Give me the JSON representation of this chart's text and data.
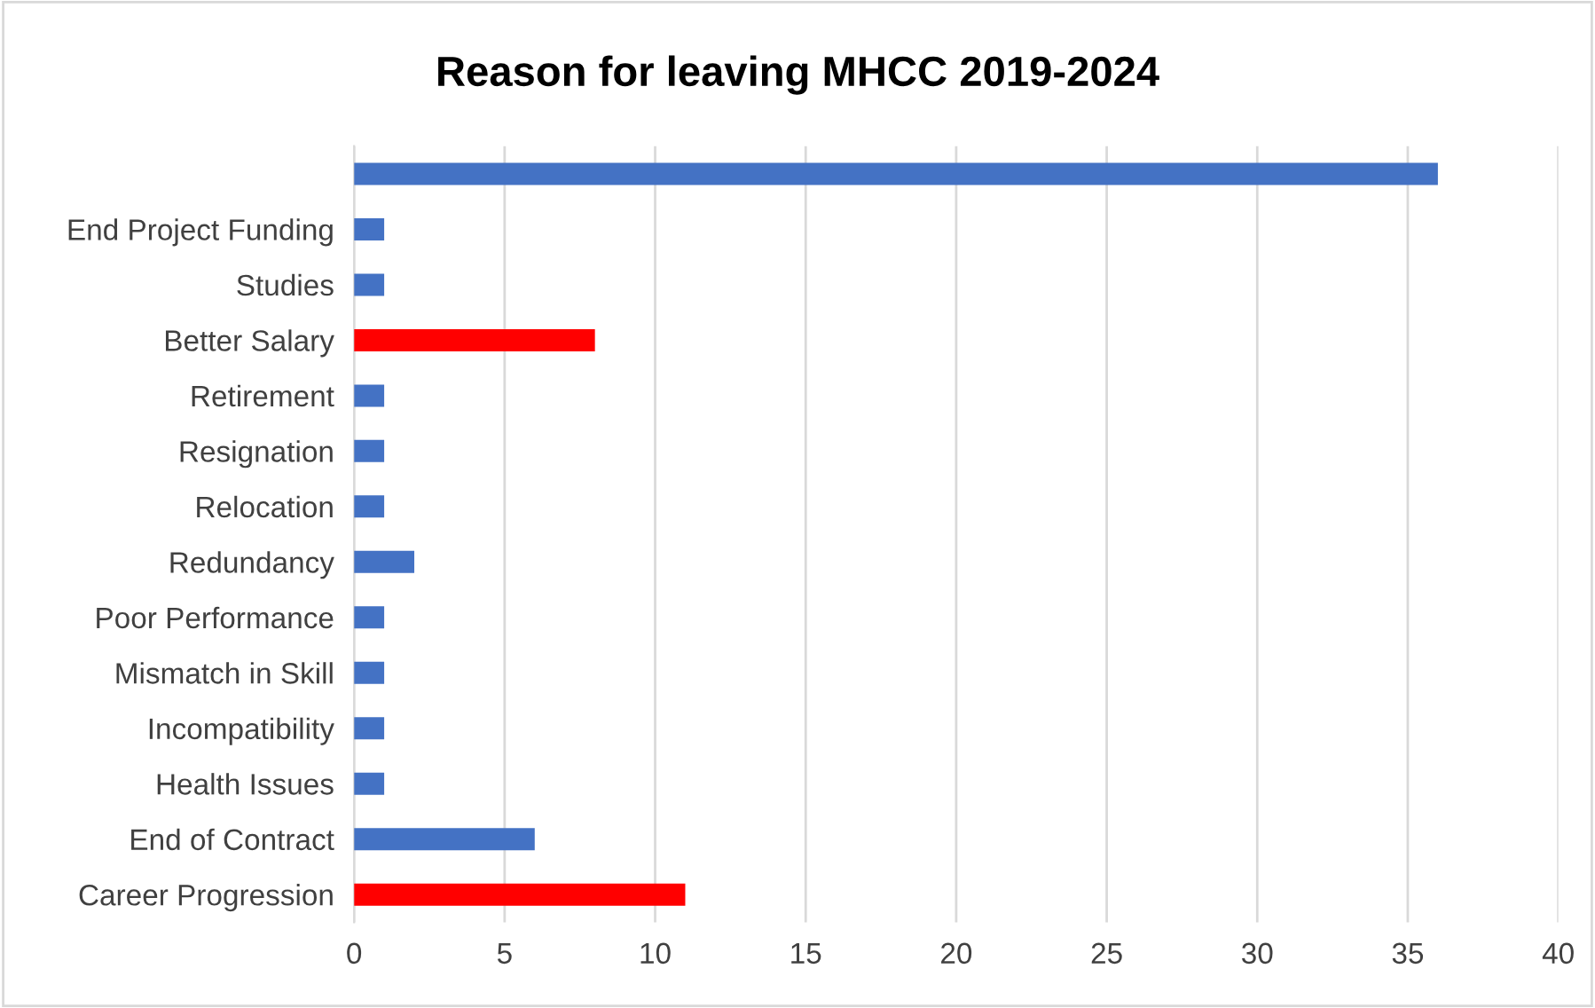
{
  "chart_data": {
    "type": "bar",
    "orientation": "horizontal",
    "title": "Reason for leaving MHCC 2019-2024",
    "categories": [
      null,
      "End Project Funding",
      "Studies",
      "Better Salary",
      "Retirement",
      "Resignation",
      "Relocation",
      "Redundancy",
      "Poor Performance",
      "Mismatch in Skill",
      "Incompatibility",
      "Health Issues",
      "End of Contract",
      "Career Progression"
    ],
    "values": [
      36,
      1,
      1,
      8,
      1,
      1,
      1,
      2,
      1,
      1,
      1,
      1,
      6,
      11
    ],
    "colors": [
      "#4472c4",
      "#4472c4",
      "#4472c4",
      "#ff0000",
      "#4472c4",
      "#4472c4",
      "#4472c4",
      "#4472c4",
      "#4472c4",
      "#4472c4",
      "#4472c4",
      "#4472c4",
      "#4472c4",
      "#ff0000"
    ],
    "xlim": [
      0,
      40
    ],
    "xticks": [
      0,
      5,
      10,
      15,
      20,
      25,
      30,
      35,
      40
    ],
    "grid": "x",
    "legend": false
  }
}
